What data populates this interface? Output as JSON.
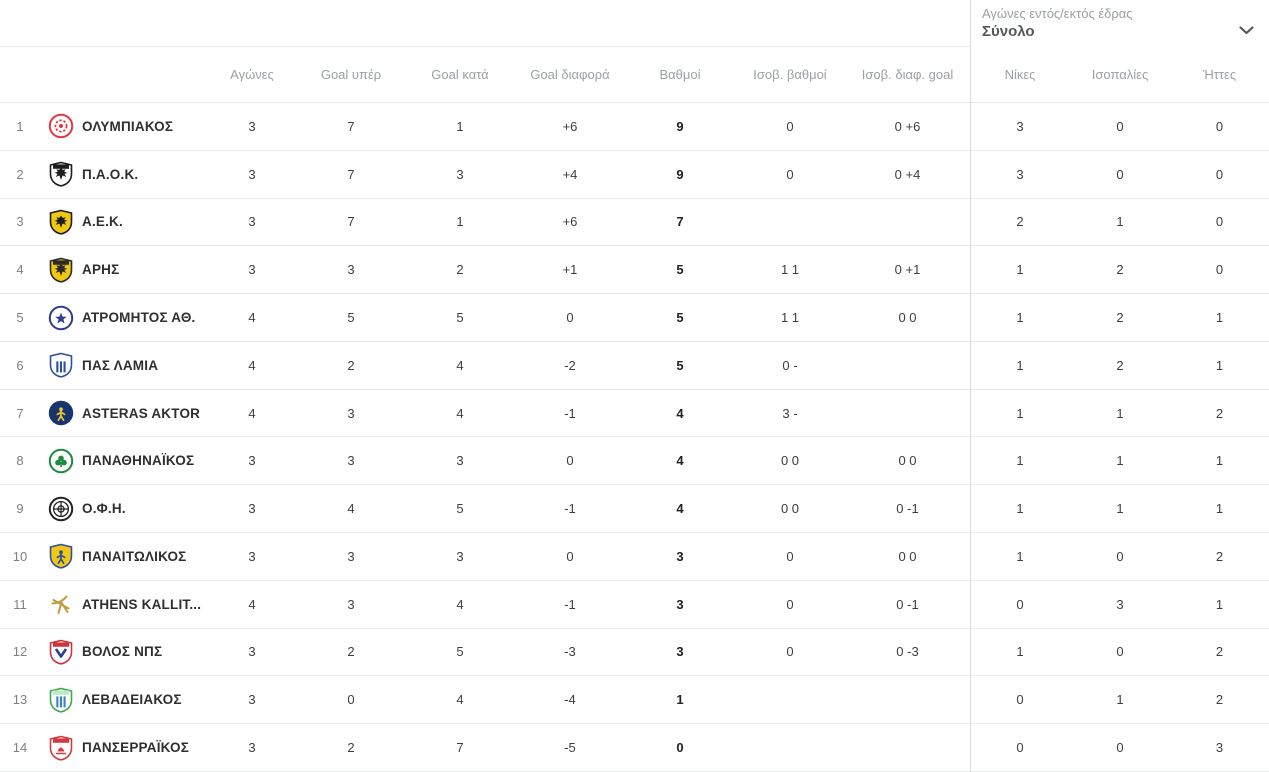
{
  "filter": {
    "label": "Αγώνες εντός/εκτός έδρας",
    "selected": "Σύνολο",
    "chevron_icon": "chevron-down"
  },
  "colors": {
    "divider": "#d9dcde",
    "row_border": "#e9eaea",
    "header_text": "#9ba1a5",
    "body_text": "#3c3e40",
    "team_text": "#2d2f31",
    "muted_text": "#7d8184"
  },
  "table": {
    "columns": [
      {
        "key": "games",
        "label": "Αγώνες"
      },
      {
        "key": "gf",
        "label": "Goal υπέρ"
      },
      {
        "key": "ga",
        "label": "Goal κατά"
      },
      {
        "key": "gd",
        "label": "Goal διαφορά"
      },
      {
        "key": "points",
        "label": "Βαθμοί"
      },
      {
        "key": "tb_points",
        "label": "Ισοβ. βαθμοί"
      },
      {
        "key": "tb_gd",
        "label": "Ισοβ. διαφ. goal"
      },
      {
        "key": "wins",
        "label": "Νίκες"
      },
      {
        "key": "draws",
        "label": "Ισοπαλίες"
      },
      {
        "key": "losses",
        "label": "Ήττες"
      }
    ],
    "rows": [
      {
        "pos": "1",
        "team": "ΟΛΥΜΠΙΑΚΟΣ",
        "logo": {
          "icon": "olympiacos-logo",
          "kind": "circle",
          "bg": "#ffffff",
          "ring": "#e0383e",
          "mark": "burst",
          "markColor": "#e0383e"
        },
        "stats": {
          "games": "3",
          "gf": "7",
          "ga": "1",
          "gd": "+6",
          "points": "9",
          "tb_points": "0",
          "tb_gd": "0 +6",
          "wins": "3",
          "draws": "0",
          "losses": "0"
        }
      },
      {
        "pos": "2",
        "team": "Π.Α.Ο.Κ.",
        "logo": {
          "icon": "paok-logo",
          "kind": "shield",
          "bg": "#ffffff",
          "border": "#1d1d1d",
          "band": "#1d1d1d",
          "mark": "eagle",
          "markColor": "#1d1d1d"
        },
        "stats": {
          "games": "3",
          "gf": "7",
          "ga": "3",
          "gd": "+4",
          "points": "9",
          "tb_points": "0",
          "tb_gd": "0 +4",
          "wins": "3",
          "draws": "0",
          "losses": "0"
        }
      },
      {
        "pos": "3",
        "team": "Α.Ε.Κ.",
        "logo": {
          "icon": "aek-logo",
          "kind": "shield",
          "bg": "#f3c812",
          "border": "#1d1d1d",
          "band": null,
          "mark": "eagle",
          "markColor": "#1d1d1d"
        },
        "stats": {
          "games": "3",
          "gf": "7",
          "ga": "1",
          "gd": "+6",
          "points": "7",
          "tb_points": "",
          "tb_gd": "",
          "wins": "2",
          "draws": "1",
          "losses": "0"
        }
      },
      {
        "pos": "4",
        "team": "ΑΡΗΣ",
        "logo": {
          "icon": "aris-logo",
          "kind": "shield",
          "bg": "#f3c812",
          "border": "#2a2a2a",
          "band": "#2a2a2a",
          "mark": "eagle",
          "markColor": "#2a2a2a"
        },
        "stats": {
          "games": "3",
          "gf": "3",
          "ga": "2",
          "gd": "+1",
          "points": "5",
          "tb_points": "1 1",
          "tb_gd": "0 +1",
          "wins": "1",
          "draws": "2",
          "losses": "0"
        }
      },
      {
        "pos": "5",
        "team": "ΑΤΡΟΜΗΤΟΣ ΑΘ.",
        "logo": {
          "icon": "atromitos-logo",
          "kind": "circle",
          "bg": "#ffffff",
          "ring": "#2e3d8f",
          "mark": "star",
          "markColor": "#2e3d8f"
        },
        "stats": {
          "games": "4",
          "gf": "5",
          "ga": "5",
          "gd": "0",
          "points": "5",
          "tb_points": "1 1",
          "tb_gd": "0 0",
          "wins": "1",
          "draws": "2",
          "losses": "1"
        }
      },
      {
        "pos": "6",
        "team": "ΠΑΣ ΛΑΜΙΑ",
        "logo": {
          "icon": "lamia-logo",
          "kind": "shield",
          "bg": "#ffffff",
          "border": "#2c50a3",
          "band": null,
          "mark": "stripes",
          "markColor": "#2c50a3"
        },
        "stats": {
          "games": "4",
          "gf": "2",
          "ga": "4",
          "gd": "-2",
          "points": "5",
          "tb_points": "0 -",
          "tb_gd": "",
          "wins": "1",
          "draws": "2",
          "losses": "1"
        }
      },
      {
        "pos": "7",
        "team": "ASTERAS AKTOR",
        "logo": {
          "icon": "asteras-logo",
          "kind": "circle",
          "bg": "#16346e",
          "ring": "#16346e",
          "mark": "figure",
          "markColor": "#f0c330"
        },
        "stats": {
          "games": "4",
          "gf": "3",
          "ga": "4",
          "gd": "-1",
          "points": "4",
          "tb_points": "3 -",
          "tb_gd": "",
          "wins": "1",
          "draws": "1",
          "losses": "2"
        }
      },
      {
        "pos": "8",
        "team": "ΠΑΝΑΘΗΝΑΪΚΟΣ",
        "logo": {
          "icon": "panathinaikos-logo",
          "kind": "circle",
          "bg": "#ffffff",
          "ring": "#1b8a3e",
          "mark": "trefoil",
          "markColor": "#1b8a3e"
        },
        "stats": {
          "games": "3",
          "gf": "3",
          "ga": "3",
          "gd": "0",
          "points": "4",
          "tb_points": "0 0",
          "tb_gd": "0 0",
          "wins": "1",
          "draws": "1",
          "losses": "1"
        }
      },
      {
        "pos": "9",
        "team": "Ο.Φ.Η.",
        "logo": {
          "icon": "ofi-logo",
          "kind": "circle",
          "bg": "#ffffff",
          "ring": "#222222",
          "mark": "rings",
          "markColor": "#222222"
        },
        "stats": {
          "games": "3",
          "gf": "4",
          "ga": "5",
          "gd": "-1",
          "points": "4",
          "tb_points": "0 0",
          "tb_gd": "0 -1",
          "wins": "1",
          "draws": "1",
          "losses": "1"
        }
      },
      {
        "pos": "10",
        "team": "ΠΑΝΑΙΤΩΛΙΚΟΣ",
        "logo": {
          "icon": "panaitolikos-logo",
          "kind": "shield",
          "bg": "#f3c812",
          "border": "#2c50a3",
          "band": null,
          "mark": "figure",
          "markColor": "#2c50a3"
        },
        "stats": {
          "games": "3",
          "gf": "3",
          "ga": "3",
          "gd": "0",
          "points": "3",
          "tb_points": "0",
          "tb_gd": "0 0",
          "wins": "1",
          "draws": "0",
          "losses": "2"
        }
      },
      {
        "pos": "11",
        "team": "ATHENS KALLIT...",
        "logo": {
          "icon": "athens-kallithea-logo",
          "kind": "runner",
          "markColor": "#c49a3f"
        },
        "stats": {
          "games": "4",
          "gf": "3",
          "ga": "4",
          "gd": "-1",
          "points": "3",
          "tb_points": "0",
          "tb_gd": "0 -1",
          "wins": "0",
          "draws": "3",
          "losses": "1"
        }
      },
      {
        "pos": "12",
        "team": "ΒΟΛΟΣ ΝΠΣ",
        "logo": {
          "icon": "volos-logo",
          "kind": "shield",
          "bg": "#ffffff",
          "border": "#cf3340",
          "band": "#cf3340",
          "mark": "chevron",
          "markColor": "#2c3e8f"
        },
        "stats": {
          "games": "3",
          "gf": "2",
          "ga": "5",
          "gd": "-3",
          "points": "3",
          "tb_points": "0",
          "tb_gd": "0 -3",
          "wins": "1",
          "draws": "0",
          "losses": "2"
        }
      },
      {
        "pos": "13",
        "team": "ΛΕΒΑΔΕΙΑΚΟΣ",
        "logo": {
          "icon": "levadiakos-logo",
          "kind": "shield",
          "bg": "#ffffff",
          "border": "#3aa94c",
          "band": "#bfe8c8",
          "mark": "stripes",
          "markColor": "#3a7fc1"
        },
        "stats": {
          "games": "3",
          "gf": "0",
          "ga": "4",
          "gd": "-4",
          "points": "1",
          "tb_points": "",
          "tb_gd": "",
          "wins": "0",
          "draws": "1",
          "losses": "2"
        }
      },
      {
        "pos": "14",
        "team": "ΠΑΝΣΕΡΡΑΪΚΟΣ",
        "logo": {
          "icon": "panserraikos-logo",
          "kind": "shield",
          "bg": "#ffffff",
          "border": "#d23a40",
          "band": "#d23a40",
          "mark": "ship",
          "markColor": "#d23a40"
        },
        "stats": {
          "games": "3",
          "gf": "2",
          "ga": "7",
          "gd": "-5",
          "points": "0",
          "tb_points": "",
          "tb_gd": "",
          "wins": "0",
          "draws": "0",
          "losses": "3"
        }
      }
    ]
  }
}
